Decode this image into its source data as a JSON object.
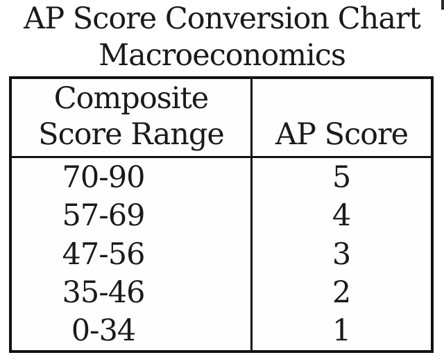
{
  "page": {
    "title_line1": "AP Score Conversion Chart",
    "title_line2": "Macroeconomics"
  },
  "table": {
    "col1_header_line1": "Composite",
    "col1_header_line2": "Score Range",
    "col2_header": "AP Score",
    "rows": [
      {
        "range": "70-90",
        "score": "5"
      },
      {
        "range": "57-69",
        "score": "4"
      },
      {
        "range": "47-56",
        "score": "3"
      },
      {
        "range": "35-46",
        "score": "2"
      },
      {
        "range": "0-34",
        "score": "1"
      }
    ]
  },
  "chart_data": {
    "type": "table",
    "title": "AP Score Conversion Chart",
    "subtitle": "Macroeconomics",
    "columns": [
      "Composite Score Range",
      "AP Score"
    ],
    "rows": [
      [
        "70-90",
        "5"
      ],
      [
        "57-69",
        "4"
      ],
      [
        "47-56",
        "3"
      ],
      [
        "35-46",
        "2"
      ],
      [
        "0-34",
        "1"
      ]
    ]
  },
  "colors": {
    "text": "#1a1a1a",
    "border": "#121212",
    "background": "#ffffff"
  }
}
